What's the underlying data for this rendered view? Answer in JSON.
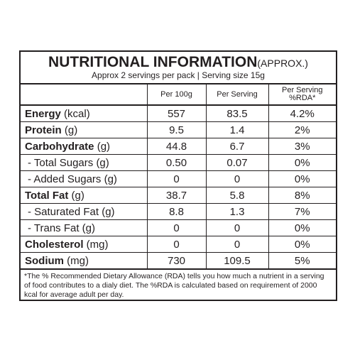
{
  "header": {
    "title": "NUTRITIONAL INFORMATION",
    "title_suffix": "(APPROX.)",
    "subtitle": "Approx 2 servings per pack | Serving size 15g"
  },
  "columns": [
    "",
    "Per 100g",
    "Per Serving",
    "Per Serving %RDA*"
  ],
  "rows": [
    {
      "name": "Energy",
      "unit": " (kcal)",
      "per100": "557",
      "perServing": "83.5",
      "rda": "4.2%"
    },
    {
      "name": "Protein",
      "unit": " (g)",
      "per100": "9.5",
      "perServing": "1.4",
      "rda": "2%"
    },
    {
      "name": "Carbohydrate",
      "unit": " (g)",
      "per100": "44.8",
      "perServing": "6.7",
      "rda": "3%"
    },
    {
      "name": "- Total Sugars (g)",
      "per100": "0.50",
      "perServing": "0.07",
      "rda": "0%"
    },
    {
      "name": "- Added Sugars (g)",
      "per100": "0",
      "perServing": "0",
      "rda": "0%"
    },
    {
      "name": "Total Fat",
      "unit": " (g)",
      "per100": "38.7",
      "perServing": "5.8",
      "rda": "8%"
    },
    {
      "name": "- Saturated Fat (g)",
      "per100": "8.8",
      "perServing": "1.3",
      "rda": "7%"
    },
    {
      "name": "- Trans Fat (g)",
      "per100": "0",
      "perServing": "0",
      "rda": "0%"
    },
    {
      "name": "Cholesterol",
      "unit": " (mg)",
      "per100": "0",
      "perServing": "0",
      "rda": "0%"
    },
    {
      "name": "Sodium",
      "unit": " (mg)",
      "per100": "730",
      "perServing": "109.5",
      "rda": "5%"
    }
  ],
  "footnote": "*The % Recommended Dietary Allowance (RDA) tells you how much a nutrient in a serving of food contributes to a dialy diet. The %RDA is calculated based on requirement of 2000 kcal for average adult per day."
}
